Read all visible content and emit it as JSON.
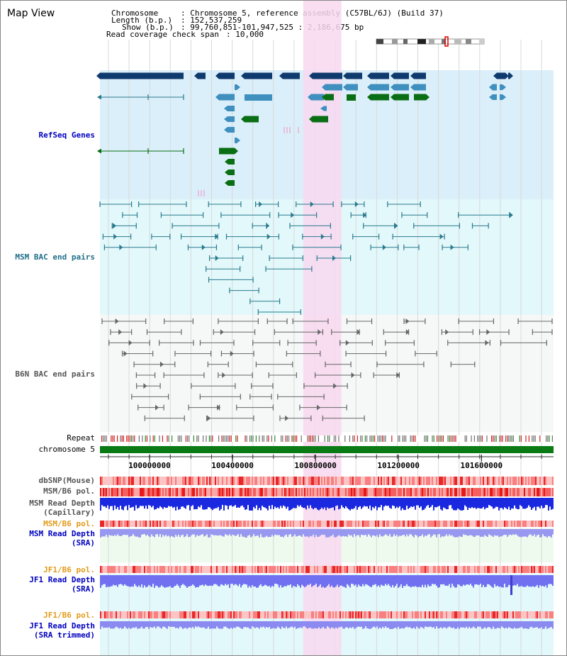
{
  "page": {
    "title": "Map View"
  },
  "header": {
    "chromosome_key": "Chromosome",
    "chromosome_val": ": Chromosome 5, reference assembly (C57BL/6J) (Build 37)",
    "length_key": "Length (b.p.)",
    "length_val": ": 152,537,259",
    "show_key": "Show (b.p.)",
    "show_val": ": 99,760,851-101,947,525 : 2,186,675 bp",
    "coverage_key": "Read coverage check span",
    "coverage_val": ": 10,000"
  },
  "tracks": {
    "refseq": "RefSeq Genes",
    "msm_bac": "MSM BAC end pairs",
    "b6n_bac": "B6N BAC end pairs",
    "repeat": "Repeat",
    "chromosome": "chromosome 5",
    "dbsnp": "dbSNP(Mouse)",
    "msm_b6_pol_1": "MSM/B6 pol.",
    "msm_read_depth_cap_1": "MSM Read Depth",
    "msm_read_depth_cap_2": "(Capillary)",
    "msm_b6_pol_2": "MSM/B6 pol.",
    "msm_read_depth_sra_1": "MSM Read Depth",
    "msm_read_depth_sra_2": "(SRA)",
    "jf1_b6_pol_1": "JF1/B6 pol.",
    "jf1_read_depth_sra_1": "JF1 Read Depth",
    "jf1_read_depth_sra_2": "(SRA)",
    "jf1_b6_pol_2": "JF1/B6 pol.",
    "jf1_read_depth_trim_1": "JF1 Read Depth",
    "jf1_read_depth_trim_2": "(SRA trimmed)"
  },
  "axis": {
    "ticks": [
      {
        "pos": 100000000,
        "label": "100000000"
      },
      {
        "pos": 100400000,
        "label": "100400000"
      },
      {
        "pos": 100800000,
        "label": "100800000"
      },
      {
        "pos": 101200000,
        "label": "101200000"
      },
      {
        "pos": 101600000,
        "label": "101600000"
      }
    ],
    "start": 99760851,
    "end": 101947525
  },
  "highlight": {
    "start": 100741000,
    "end": 100925000
  },
  "colors": {
    "refseq_bg": "#dbeffa",
    "msm_bg": "#e2f8fa",
    "highlight": "#f8d8f0",
    "gene_dark": "#0f3a6e",
    "gene_mid": "#3f8fbf",
    "gene_green": "#0a6e14",
    "bac_msm": "#2a7a8e",
    "bac_b6n": "#666666",
    "chrom_bar": "#0a7a14",
    "label_blue": "#0000c0",
    "label_teal": "#1f6e8a",
    "label_orange": "#e39b1b",
    "label_gray": "#555555"
  }
}
